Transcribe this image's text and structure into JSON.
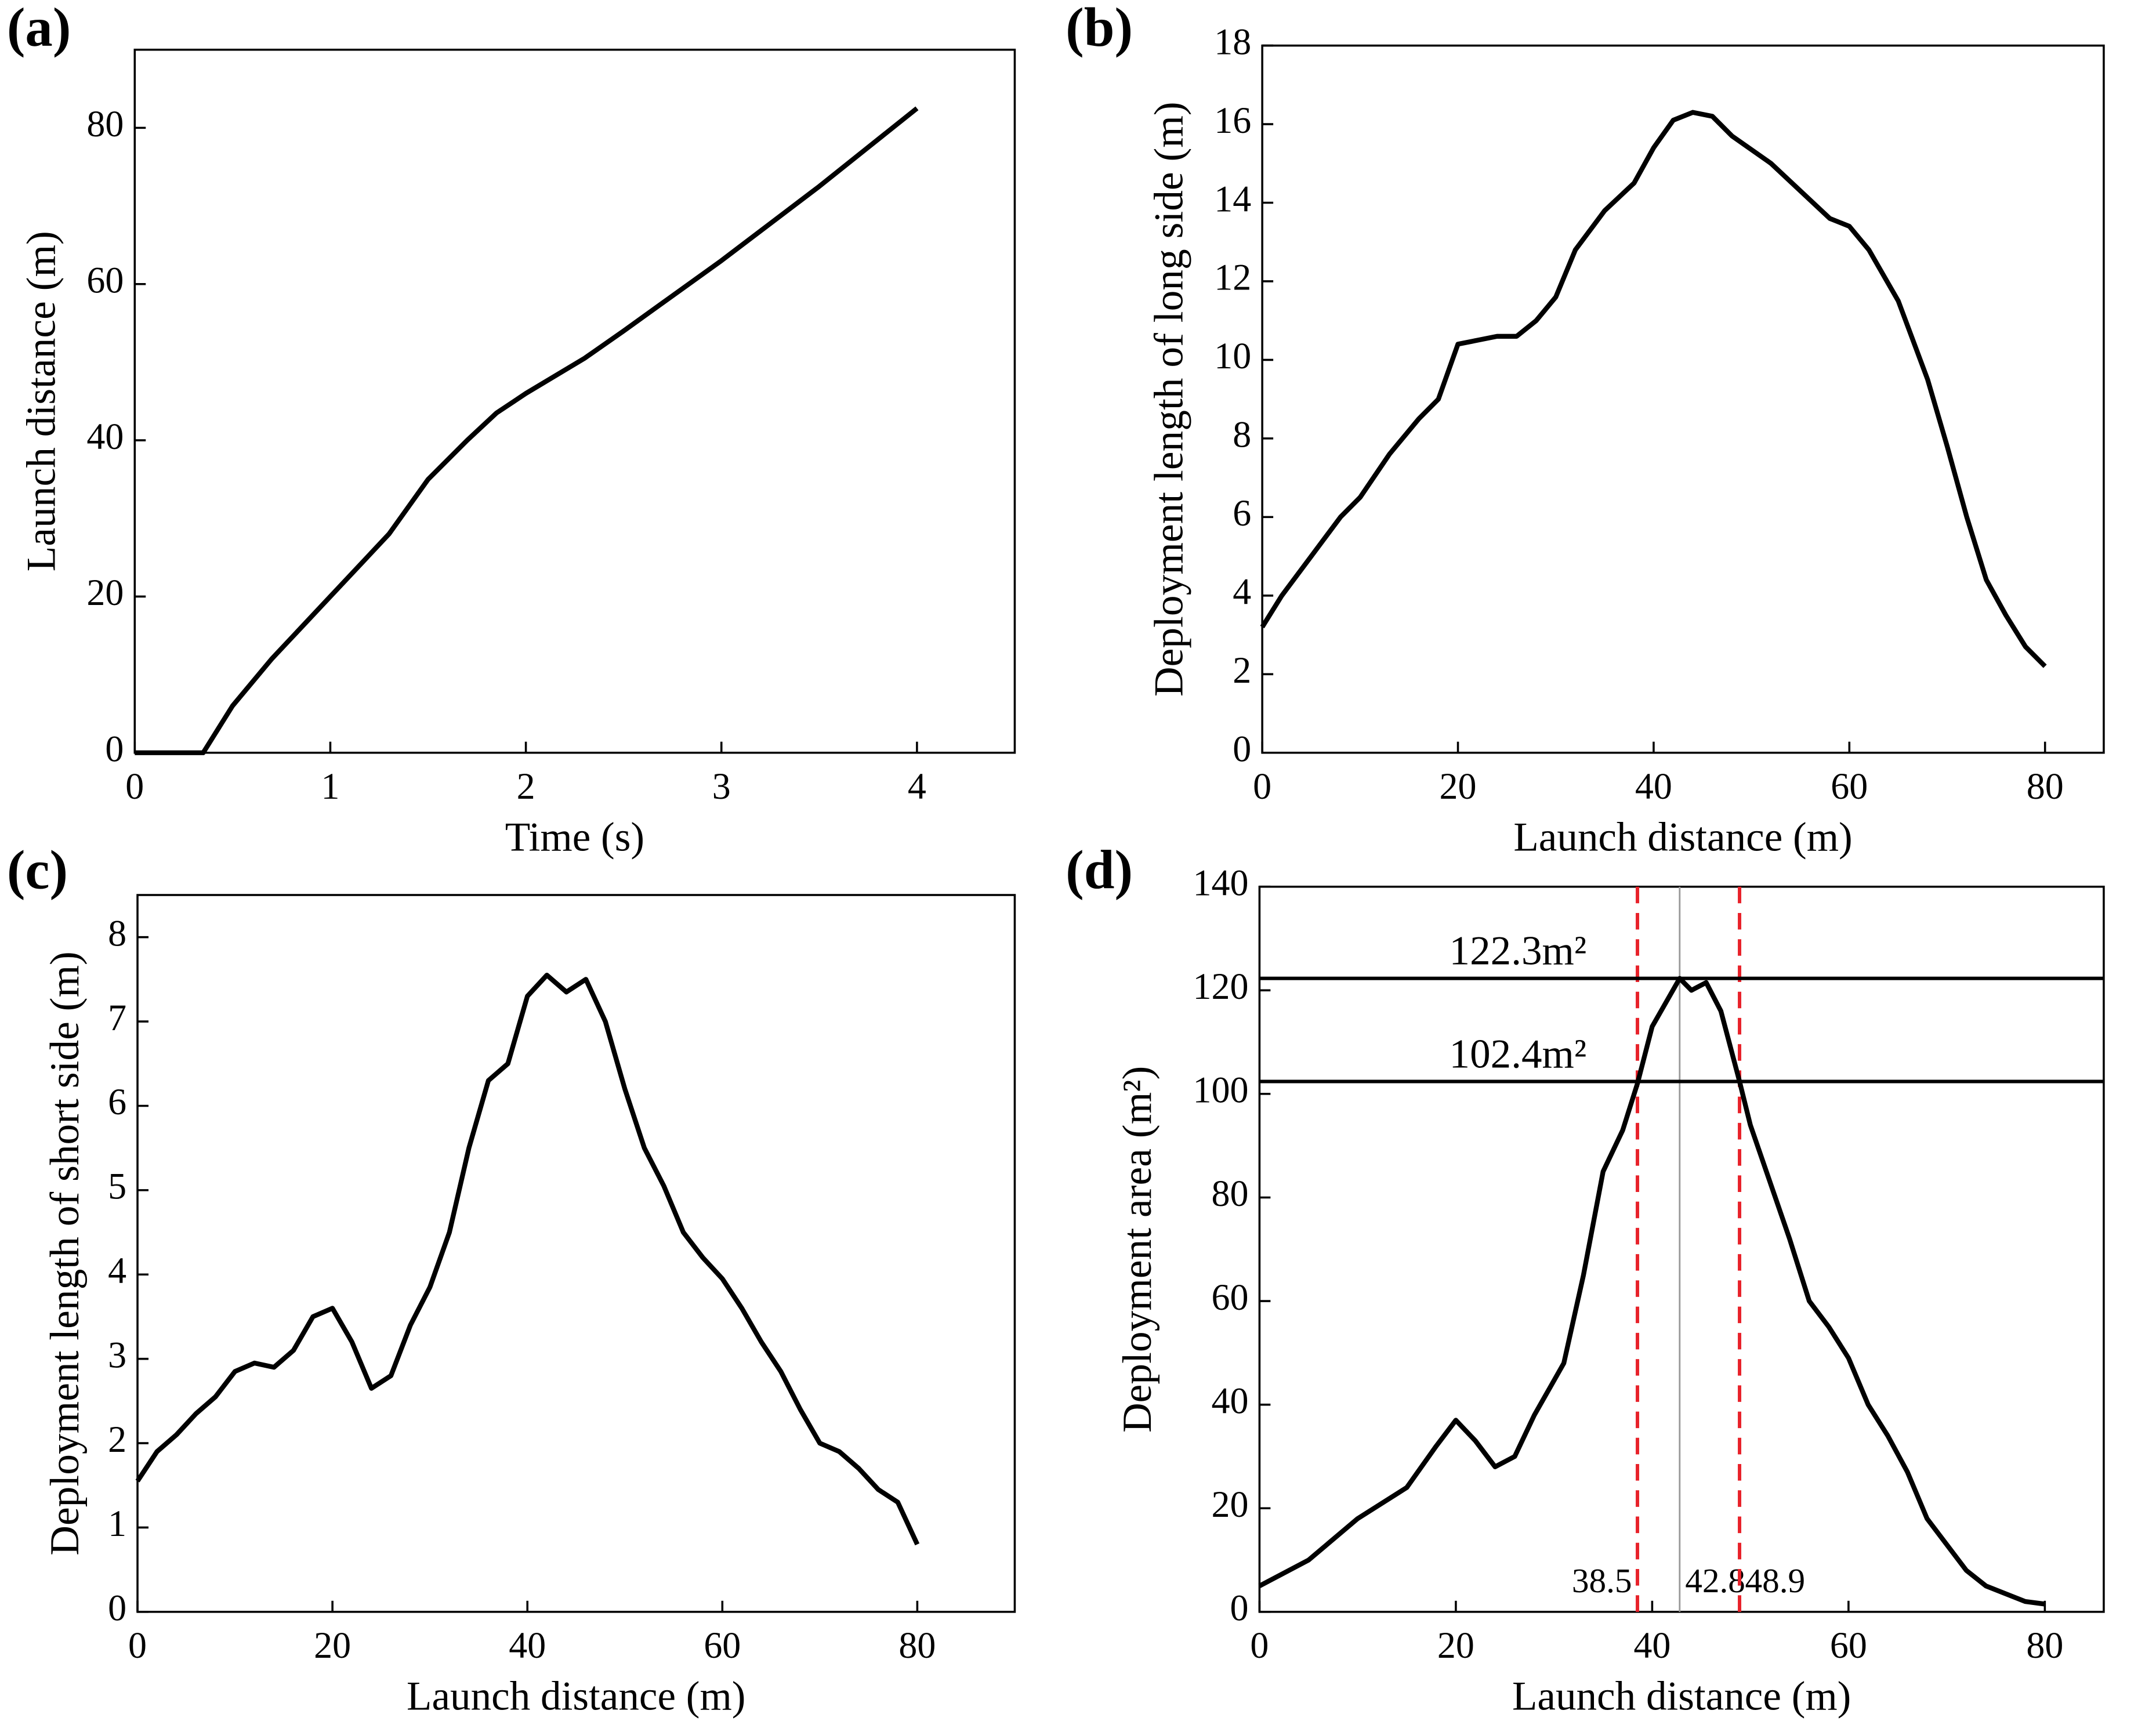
{
  "chart_data": [
    {
      "type": "line",
      "panel_label": "(a)",
      "xlabel": "Time (s)",
      "ylabel": "Launch distance (m)",
      "xlim": [
        0,
        4.5
      ],
      "ylim": [
        0,
        90
      ],
      "xticks": [
        0,
        1,
        2,
        3,
        4
      ],
      "yticks": [
        0,
        20,
        40,
        60,
        80
      ],
      "color": "#000000",
      "x": [
        0,
        0.35,
        0.5,
        0.7,
        1,
        1.3,
        1.5,
        1.7,
        1.85,
        2,
        2.3,
        2.5,
        3,
        3.5,
        4
      ],
      "values": [
        0,
        0,
        6,
        12,
        20,
        28,
        35,
        40,
        43.5,
        46,
        50.5,
        54,
        63,
        72.5,
        82.5
      ]
    },
    {
      "type": "line",
      "panel_label": "(b)",
      "xlabel": "Launch distance (m)",
      "ylabel": "Deployment length of long side (m)",
      "xlim": [
        0,
        86
      ],
      "ylim": [
        0,
        18
      ],
      "xticks": [
        0,
        20,
        40,
        60,
        80
      ],
      "yticks": [
        0,
        2,
        4,
        6,
        8,
        10,
        12,
        14,
        16,
        18
      ],
      "color": "#000000",
      "x": [
        0,
        2,
        5,
        8,
        10,
        13,
        16,
        18,
        20,
        22,
        24,
        26,
        28,
        30,
        32,
        35,
        38,
        40,
        42,
        44,
        46,
        48,
        52,
        55,
        58,
        60,
        62,
        65,
        68,
        70,
        72,
        74,
        76,
        78,
        80
      ],
      "values": [
        3.2,
        4,
        5,
        6,
        6.5,
        7.6,
        8.5,
        9,
        10.4,
        10.5,
        10.6,
        10.6,
        11,
        11.6,
        12.8,
        13.8,
        14.5,
        15.4,
        16.1,
        16.3,
        16.2,
        15.7,
        15,
        14.3,
        13.6,
        13.4,
        12.8,
        11.5,
        9.5,
        7.8,
        6,
        4.4,
        3.5,
        2.7,
        2.2
      ]
    },
    {
      "type": "line",
      "panel_label": "(c)",
      "xlabel": "Launch distance (m)",
      "ylabel": "Deployment length of short side (m)",
      "xlim": [
        0,
        90
      ],
      "ylim": [
        0,
        8.5
      ],
      "xticks": [
        0,
        20,
        40,
        60,
        80
      ],
      "yticks": [
        0,
        1,
        2,
        3,
        4,
        5,
        6,
        7,
        8
      ],
      "color": "#000000",
      "x": [
        0,
        2,
        4,
        6,
        8,
        10,
        12,
        14,
        16,
        18,
        20,
        22,
        24,
        26,
        28,
        30,
        32,
        34,
        36,
        38,
        40,
        42,
        44,
        46,
        48,
        50,
        52,
        54,
        56,
        58,
        60,
        62,
        64,
        66,
        68,
        70,
        72,
        74,
        76,
        78,
        80
      ],
      "values": [
        1.55,
        1.9,
        2.1,
        2.35,
        2.55,
        2.85,
        2.95,
        2.9,
        3.1,
        3.5,
        3.6,
        3.2,
        2.65,
        2.8,
        3.4,
        3.85,
        4.5,
        5.5,
        6.3,
        6.5,
        7.3,
        7.55,
        7.35,
        7.5,
        7.0,
        6.2,
        5.5,
        5.05,
        4.5,
        4.2,
        3.95,
        3.6,
        3.2,
        2.85,
        2.4,
        2.0,
        1.9,
        1.7,
        1.45,
        1.3,
        0.8
      ]
    },
    {
      "type": "line",
      "panel_label": "(d)",
      "xlabel": "Launch distance (m)",
      "ylabel": "Deployment area (m²)",
      "xlim": [
        0,
        86
      ],
      "ylim": [
        0,
        140
      ],
      "xticks": [
        0,
        20,
        40,
        60,
        80
      ],
      "yticks": [
        0,
        20,
        40,
        60,
        80,
        100,
        120,
        140
      ],
      "color": "#000000",
      "x": [
        0,
        5,
        10,
        15,
        18,
        20,
        22,
        24,
        26,
        28,
        31,
        33,
        35,
        37,
        38.5,
        40,
        42.8,
        44,
        45.5,
        47,
        48.9,
        50,
        52,
        54,
        56,
        58,
        60,
        62,
        64,
        66,
        68,
        70,
        72,
        74,
        76,
        78,
        80
      ],
      "values": [
        5,
        10,
        18,
        24,
        32,
        37,
        33,
        28,
        30,
        38,
        48,
        65,
        85,
        93,
        102,
        113,
        122.3,
        120,
        121.5,
        116,
        102.4,
        94,
        83,
        72,
        60,
        55,
        49,
        40,
        34,
        27,
        18,
        13,
        8,
        5,
        3.5,
        2,
        1.5
      ],
      "hlines": [
        {
          "value": 122.3,
          "label": "122.3m²",
          "color": "#000000"
        },
        {
          "value": 102.4,
          "label": "102.4m²",
          "color": "#000000"
        }
      ],
      "vlines": [
        {
          "value": 38.5,
          "label": "38.5",
          "color": "#e8222a",
          "dashed": true
        },
        {
          "value": 42.8,
          "label": "42.8",
          "color": "#999999",
          "dashed": false
        },
        {
          "value": 48.9,
          "label": "48.9",
          "color": "#e8222a",
          "dashed": true
        }
      ]
    }
  ]
}
